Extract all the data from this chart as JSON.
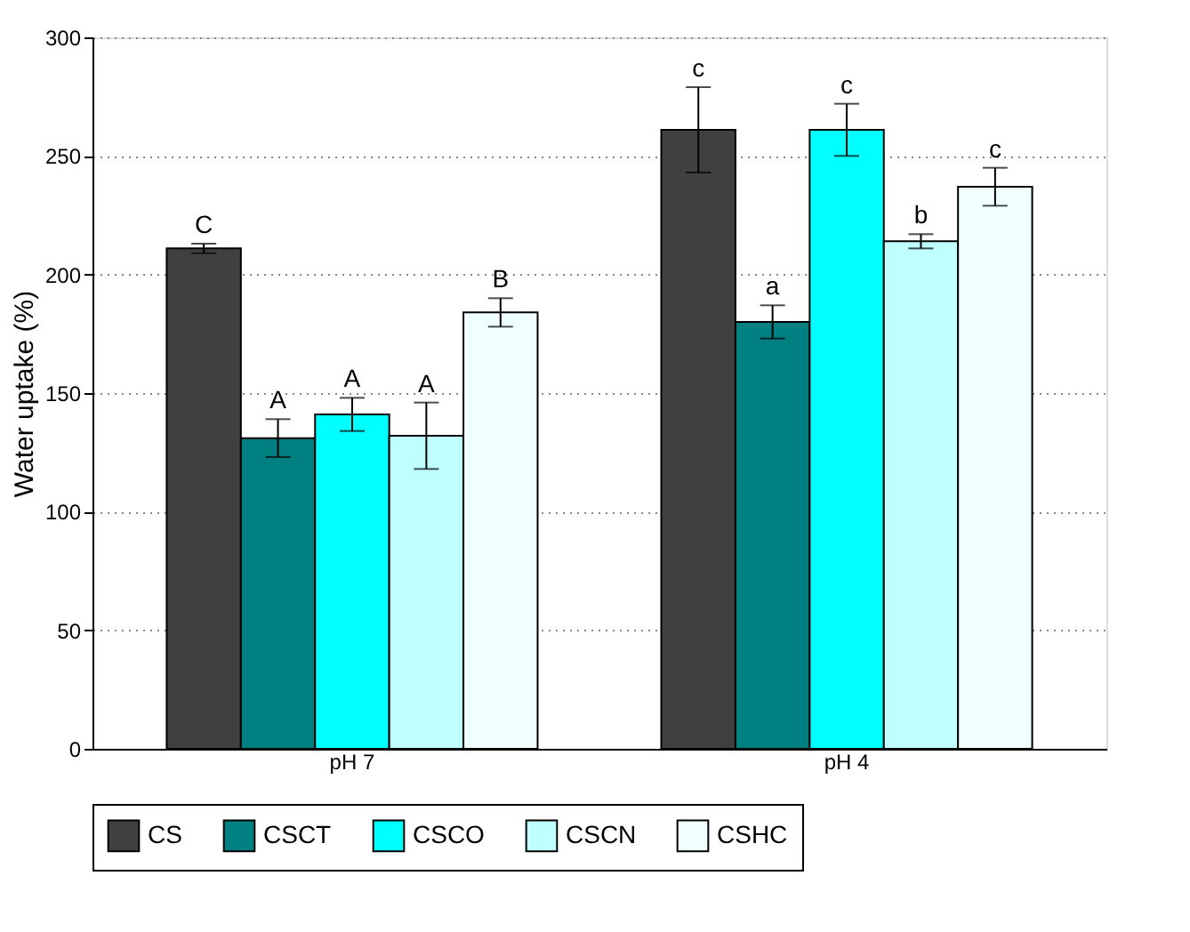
{
  "chart_data": {
    "type": "bar",
    "ylabel": "Water uptake (%)",
    "categories": [
      "pH 7",
      "pH 4"
    ],
    "series": [
      {
        "name": "CS",
        "color": "#404040",
        "values": [
          211,
          261
        ],
        "errors": [
          2,
          18
        ],
        "value_labels": [
          "C",
          "c"
        ]
      },
      {
        "name": "CSCT",
        "color": "#008080",
        "values": [
          131,
          180
        ],
        "errors": [
          8,
          7
        ],
        "value_labels": [
          "A",
          "a"
        ]
      },
      {
        "name": "CSCO",
        "color": "#00ffff",
        "values": [
          141,
          261
        ],
        "errors": [
          7,
          11
        ],
        "value_labels": [
          "A",
          "c"
        ]
      },
      {
        "name": "CSCN",
        "color": "#c0ffff",
        "values": [
          132,
          214
        ],
        "errors": [
          14,
          3
        ],
        "value_labels": [
          "A",
          "b"
        ]
      },
      {
        "name": "CSHC",
        "color": "#f0ffff",
        "values": [
          184,
          237
        ],
        "errors": [
          6,
          8
        ],
        "value_labels": [
          "B",
          "c"
        ]
      }
    ],
    "ylim": [
      0,
      300
    ],
    "yticks": [
      0,
      50,
      100,
      150,
      200,
      250,
      300
    ],
    "grid": "y",
    "legend": "bottom"
  }
}
